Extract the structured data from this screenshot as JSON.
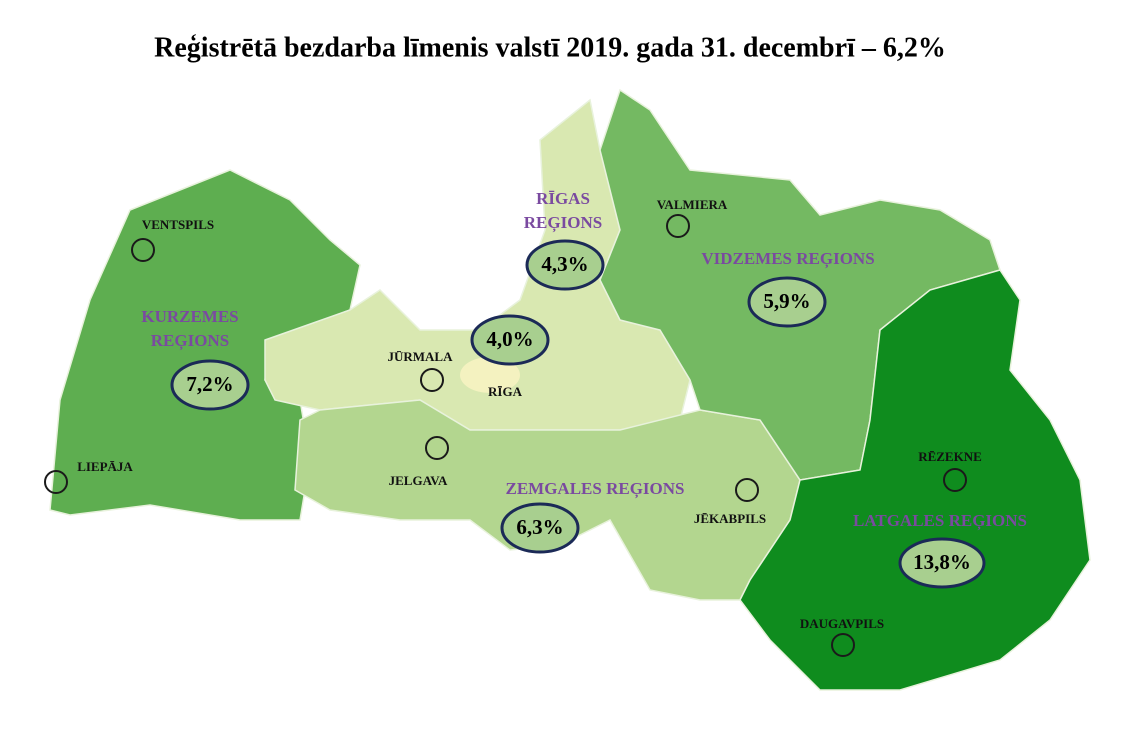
{
  "title": "Reģistrētā bezdarba līmenis valstī 2019. gada 31. decembrī – 6,2%",
  "regions": [
    {
      "name": [
        "KURZEMES",
        "REĢIONS"
      ],
      "rate": "7,2%"
    },
    {
      "name": [
        "RĪGAS",
        "REĢIONS"
      ],
      "rate": "4,3%"
    },
    {
      "name": [
        "VIDZEMES REĢIONS"
      ],
      "rate": "5,9%"
    },
    {
      "name": [
        "ZEMGALES REĢIONS"
      ],
      "rate": "6,3%"
    },
    {
      "name": [
        "LATGALES REĢIONS"
      ],
      "rate": "13,8%"
    }
  ],
  "cities": [
    {
      "name": "VENTSPILS"
    },
    {
      "name": "LIEPĀJA"
    },
    {
      "name": "JŪRMALA"
    },
    {
      "name": "RĪGA",
      "rate": "4,0%"
    },
    {
      "name": "JELGAVA"
    },
    {
      "name": "VALMIERA"
    },
    {
      "name": "JĒKABPILS"
    },
    {
      "name": "RĒZEKNE"
    },
    {
      "name": "DAUGAVPILS"
    }
  ]
}
